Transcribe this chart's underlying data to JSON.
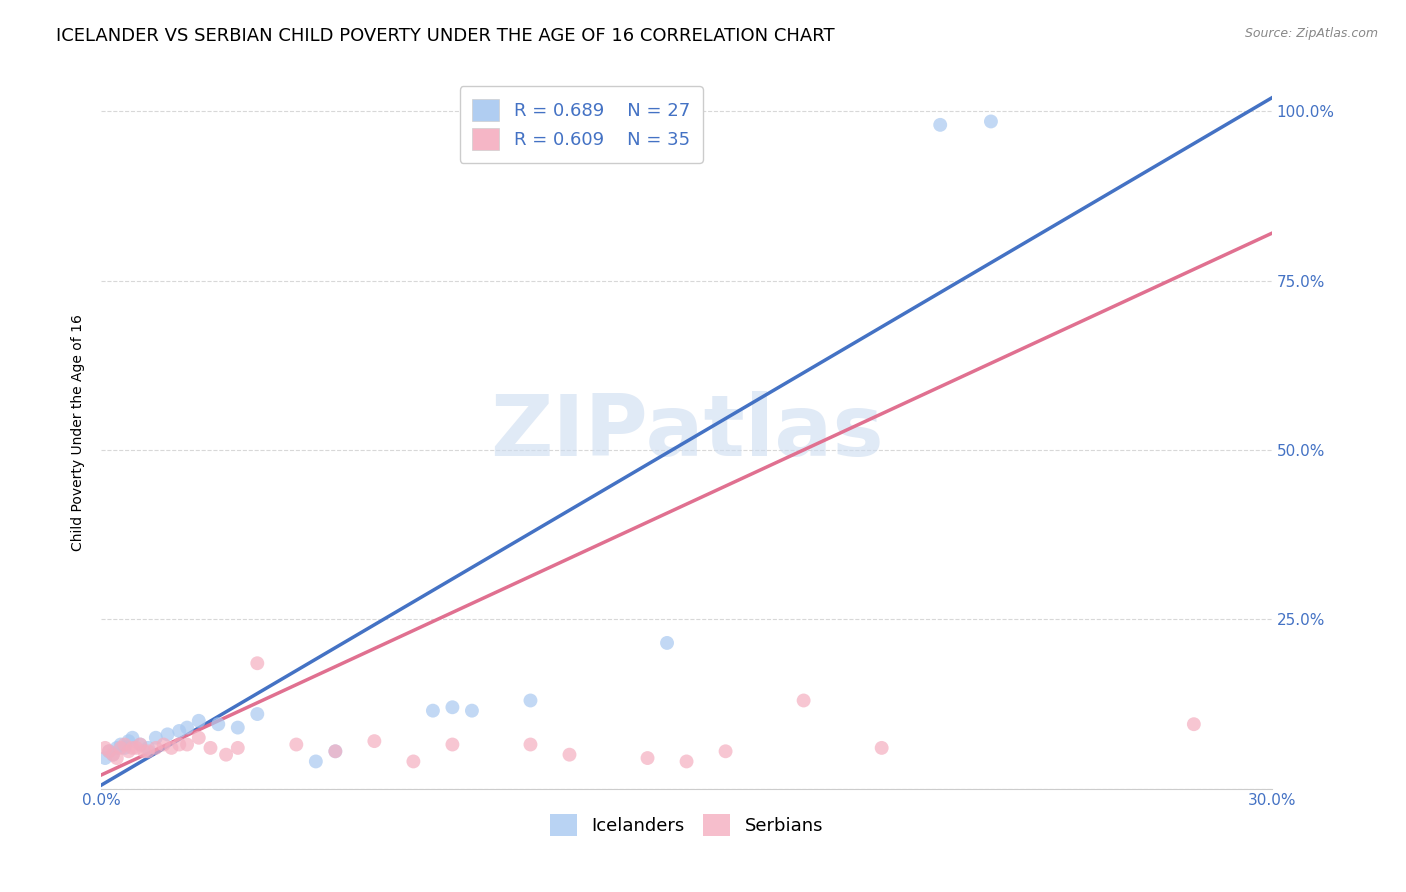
{
  "title": "ICELANDER VS SERBIAN CHILD POVERTY UNDER THE AGE OF 16 CORRELATION CHART",
  "source": "Source: ZipAtlas.com",
  "ylabel": "Child Poverty Under the Age of 16",
  "xlim": [
    0.0,
    0.3
  ],
  "ylim": [
    0.0,
    1.05
  ],
  "xtick_positions": [
    0.0,
    0.05,
    0.1,
    0.15,
    0.2,
    0.25,
    0.3
  ],
  "xticklabels": [
    "0.0%",
    "",
    "",
    "",
    "",
    "",
    "30.0%"
  ],
  "ytick_positions": [
    0.0,
    0.25,
    0.5,
    0.75,
    1.0
  ],
  "yticklabels_right": [
    "",
    "25.0%",
    "50.0%",
    "75.0%",
    "100.0%"
  ],
  "watermark": "ZIPatlas",
  "icelanders_R": 0.689,
  "icelanders_N": 27,
  "serbians_R": 0.609,
  "serbians_N": 35,
  "iceland_color": "#a8c8f0",
  "serbia_color": "#f4aec0",
  "iceland_line_color": "#4472c4",
  "serbia_line_color": "#e07090",
  "tick_color": "#4472c4",
  "grid_color": "#d8d8d8",
  "background_color": "#ffffff",
  "title_fontsize": 13,
  "axis_label_fontsize": 10,
  "tick_fontsize": 11,
  "legend_fontsize": 13,
  "marker_size": 100,
  "watermark_color": "#ccdcf0",
  "watermark_alpha": 0.6,
  "iceland_x": [
    0.001,
    0.002,
    0.003,
    0.004,
    0.005,
    0.006,
    0.007,
    0.008,
    0.01,
    0.012,
    0.014,
    0.017,
    0.02,
    0.022,
    0.025,
    0.03,
    0.035,
    0.04,
    0.055,
    0.06,
    0.085,
    0.09,
    0.095,
    0.11,
    0.145,
    0.215,
    0.228
  ],
  "iceland_y": [
    0.045,
    0.055,
    0.05,
    0.06,
    0.065,
    0.06,
    0.07,
    0.075,
    0.065,
    0.06,
    0.075,
    0.08,
    0.085,
    0.09,
    0.1,
    0.095,
    0.09,
    0.11,
    0.04,
    0.055,
    0.115,
    0.12,
    0.115,
    0.13,
    0.215,
    0.98,
    0.985
  ],
  "serbia_x": [
    0.001,
    0.002,
    0.003,
    0.004,
    0.005,
    0.006,
    0.007,
    0.008,
    0.009,
    0.01,
    0.011,
    0.012,
    0.014,
    0.016,
    0.018,
    0.02,
    0.022,
    0.025,
    0.028,
    0.032,
    0.035,
    0.04,
    0.05,
    0.06,
    0.07,
    0.08,
    0.09,
    0.11,
    0.12,
    0.14,
    0.15,
    0.16,
    0.18,
    0.2,
    0.28
  ],
  "serbia_y": [
    0.06,
    0.055,
    0.05,
    0.045,
    0.06,
    0.065,
    0.055,
    0.06,
    0.06,
    0.065,
    0.055,
    0.055,
    0.06,
    0.065,
    0.06,
    0.065,
    0.065,
    0.075,
    0.06,
    0.05,
    0.06,
    0.185,
    0.065,
    0.055,
    0.07,
    0.04,
    0.065,
    0.065,
    0.05,
    0.045,
    0.04,
    0.055,
    0.13,
    0.06,
    0.095
  ],
  "iceland_line_x0": 0.0,
  "iceland_line_y0": 0.005,
  "iceland_line_x1": 0.3,
  "iceland_line_y1": 1.02,
  "serbia_line_x0": 0.0,
  "serbia_line_y0": 0.02,
  "serbia_line_x1": 0.3,
  "serbia_line_y1": 0.82
}
